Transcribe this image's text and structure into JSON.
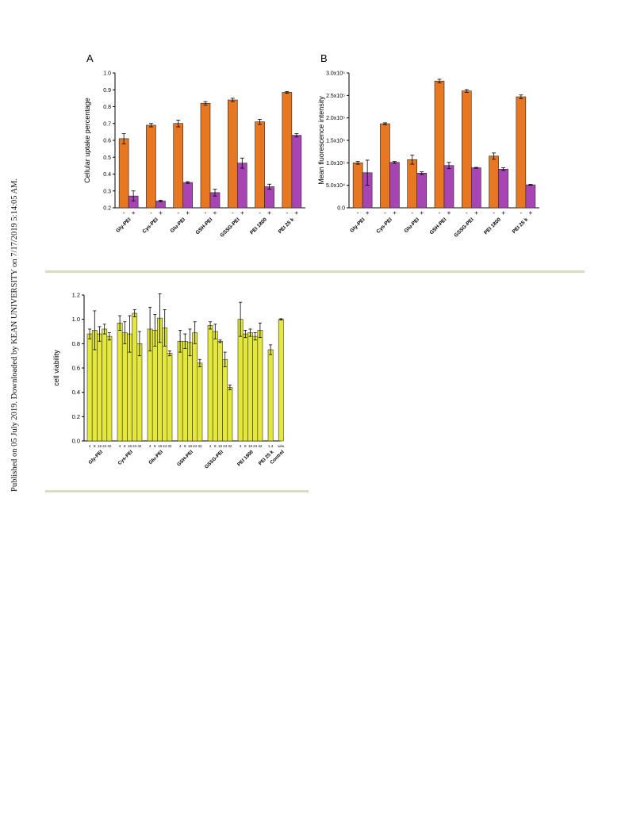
{
  "side_note": "Published on 05 July 2019. Downloaded by KEAN UNIVERSITY on 7/17/2019 5:14:05 AM.",
  "colors": {
    "orange": "#e87722",
    "purple": "#a845b5",
    "yellow": "#e3e83a",
    "rule": "#d9dcc3"
  },
  "chart_data": [
    {
      "id": "A",
      "type": "bar",
      "panel_label": "A",
      "ylabel": "Cellular uptake percentage",
      "ylim": [
        0.2,
        1.0
      ],
      "yticks": [
        "0.2",
        "0.3",
        "0.4",
        "0.5",
        "0.6",
        "0.7",
        "0.8",
        "0.9",
        "1.0"
      ],
      "yticks_values": [
        0.2,
        0.3,
        0.4,
        0.5,
        0.6,
        0.7,
        0.8,
        0.9,
        1.0
      ],
      "categories": [
        "Gly-PEI",
        "Cys-PEI",
        "Glu-PEI",
        "GSH-PEI",
        "GSSG-PEI",
        "PEI 1800",
        "PEI 25 k"
      ],
      "sub_labels": [
        "-",
        "+"
      ],
      "series": [
        {
          "values": [
            0.61,
            0.69,
            0.7,
            0.82,
            0.84,
            0.71,
            0.885
          ],
          "errors": [
            0.03,
            0.01,
            0.02,
            0.01,
            0.01,
            0.015,
            0.005
          ]
        },
        {
          "values": [
            0.27,
            0.24,
            0.35,
            0.29,
            0.465,
            0.325,
            0.63
          ],
          "errors": [
            0.03,
            0.005,
            0.005,
            0.02,
            0.03,
            0.015,
            0.01
          ]
        }
      ]
    },
    {
      "id": "B",
      "type": "bar",
      "panel_label": "B",
      "ylabel": "Mean fluorescence intensity",
      "ylim": [
        0,
        3.0
      ],
      "yticks": [
        "0.0",
        "5.0x10⁴",
        "1.0x10⁵",
        "1.5x10⁵",
        "2.0x10⁵",
        "2.5x10⁵",
        "3.0x10⁵"
      ],
      "yticks_values": [
        0,
        0.5,
        1.0,
        1.5,
        2.0,
        2.5,
        3.0
      ],
      "categories": [
        "Gly-PEI",
        "Cys-PEI",
        "Glu-PEI",
        "GSH-PEI",
        "GSSG-PEI",
        "PEI 1800",
        "PEI 25 k"
      ],
      "sub_labels": [
        "-",
        "+"
      ],
      "series": [
        {
          "values": [
            1.0,
            1.87,
            1.07,
            2.82,
            2.6,
            1.15,
            2.47
          ],
          "errors": [
            0.03,
            0.02,
            0.1,
            0.04,
            0.03,
            0.07,
            0.04
          ]
        },
        {
          "values": [
            0.78,
            1.01,
            0.77,
            0.94,
            0.89,
            0.86,
            0.51
          ],
          "errors": [
            0.28,
            0.02,
            0.03,
            0.07,
            0.01,
            0.03,
            0.01
          ]
        }
      ]
    },
    {
      "id": "C",
      "type": "bar",
      "ylabel": "cell viability",
      "ylim": [
        0,
        1.2
      ],
      "yticks": [
        "0.0",
        "0.2",
        "0.4",
        "0.6",
        "0.8",
        "1.0",
        "1.2"
      ],
      "yticks_values": [
        0,
        0.2,
        0.4,
        0.6,
        0.8,
        1.0,
        1.2
      ],
      "groups": [
        {
          "name": "Gly-PEI",
          "sub_labels": [
            "4",
            "8",
            "16",
            "24",
            "32"
          ],
          "values": [
            0.88,
            0.91,
            0.88,
            0.92,
            0.86
          ],
          "errors": [
            0.04,
            0.16,
            0.06,
            0.04,
            0.03
          ]
        },
        {
          "name": "Cys-PEI",
          "sub_labels": [
            "4",
            "8",
            "16",
            "24",
            "32"
          ],
          "values": [
            0.97,
            0.89,
            0.88,
            1.05,
            0.8
          ],
          "errors": [
            0.06,
            0.09,
            0.15,
            0.03,
            0.1
          ]
        },
        {
          "name": "Glu-PEI",
          "sub_labels": [
            "4",
            "8",
            "16",
            "24",
            "32"
          ],
          "values": [
            0.92,
            0.91,
            1.01,
            0.93,
            0.72
          ],
          "errors": [
            0.18,
            0.13,
            0.2,
            0.15,
            0.02
          ]
        },
        {
          "name": "GSH-PEI",
          "sub_labels": [
            "4",
            "8",
            "16",
            "24",
            "32"
          ],
          "values": [
            0.82,
            0.82,
            0.81,
            0.89,
            0.64
          ],
          "errors": [
            0.09,
            0.06,
            0.11,
            0.09,
            0.03
          ]
        },
        {
          "name": "GSSG-PEI",
          "sub_labels": [
            "4",
            "8",
            "16",
            "24",
            "32"
          ],
          "values": [
            0.95,
            0.9,
            0.82,
            0.67,
            0.44
          ],
          "errors": [
            0.03,
            0.06,
            0.01,
            0.06,
            0.02
          ]
        },
        {
          "name": "PEI 1800",
          "sub_labels": [
            "4",
            "8",
            "16",
            "24",
            "32"
          ],
          "values": [
            1.0,
            0.88,
            0.89,
            0.86,
            0.91
          ],
          "errors": [
            0.14,
            0.03,
            0.03,
            0.03,
            0.06
          ]
        },
        {
          "name": "PEI 25 k",
          "sub_labels": [
            "1.4"
          ],
          "values": [
            0.75
          ],
          "errors": [
            0.04
          ]
        },
        {
          "name": "Control",
          "sub_labels": [
            "w/w"
          ],
          "values": [
            1.0
          ],
          "errors": [
            0.005
          ]
        }
      ]
    }
  ]
}
